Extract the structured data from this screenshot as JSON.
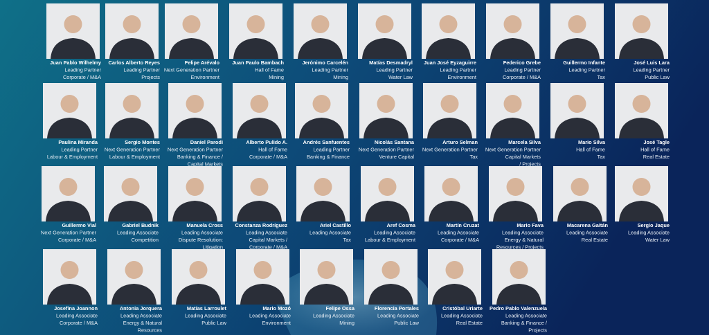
{
  "rows": [
    [
      {
        "name": "Juan Pablo Wilhelmy",
        "role": "Leading Partner",
        "area": [
          "Corporate / M&A"
        ]
      },
      {
        "name": "Carlos Alberto Reyes",
        "role": "Leading Partner",
        "area": [
          "Projects"
        ]
      },
      {
        "name": "Felipe Arévalo",
        "role": "Next Generation Partner",
        "area": [
          "Environment"
        ]
      },
      {
        "name": "Juan Paulo Bambach",
        "role": "Hall of Fame",
        "area": [
          "Mining"
        ]
      },
      {
        "name": "Jerónimo Carcelén",
        "role": "Leading Partner",
        "area": [
          "Mining"
        ]
      },
      {
        "name": "Matías Desmadryl",
        "role": "Leading Partner",
        "area": [
          "Water Law"
        ]
      },
      {
        "name": "Juan José Eyzaguirre",
        "role": "Leading Partner",
        "area": [
          "Environment"
        ]
      },
      {
        "name": "Federico Grebe",
        "role": "Leading Partner",
        "area": [
          "Corporate / M&A"
        ]
      },
      {
        "name": "Guillermo Infante",
        "role": "Leading Partner",
        "area": [
          "Tax"
        ]
      },
      {
        "name": "José Luis Lara",
        "role": "Leading Partner",
        "area": [
          "Public Law"
        ]
      }
    ],
    [
      {
        "name": "Paulina Miranda",
        "role": "Leading Partner",
        "area": [
          "Labour & Employment"
        ]
      },
      {
        "name": "Sergio Montes",
        "role": "Next Generation Partner",
        "area": [
          "Labour & Employment"
        ]
      },
      {
        "name": "Daniel Parodi",
        "role": "Next Generation Partner",
        "area": [
          "Banking & Finance /",
          "Capital Markets"
        ]
      },
      {
        "name": "Alberto Pulido A.",
        "role": "Hall of Fame",
        "area": [
          "Corporate / M&A"
        ]
      },
      {
        "name": "Andrés Sanfuentes",
        "role": "Leading Partner",
        "area": [
          "Banking & Finance"
        ]
      },
      {
        "name": "Nicolás Santana",
        "role": "Next Generation Partner",
        "area": [
          "Venture Capital"
        ]
      },
      {
        "name": "Arturo Selman",
        "role": "Next Generation Partner",
        "area": [
          "Tax"
        ]
      },
      {
        "name": "Marcela Silva",
        "role": "Next Generation Partner",
        "area": [
          "Capital Markets",
          "/ Projects"
        ]
      },
      {
        "name": "Mario Silva",
        "role": "Hall of Fame",
        "area": [
          "Tax"
        ]
      },
      {
        "name": "José Tagle",
        "role": "Hall of Fame",
        "area": [
          "Real Estate"
        ]
      }
    ],
    [
      {
        "name": "Guillermo Vial",
        "role": "Next Generation Partner",
        "area": [
          "Corporate / M&A"
        ]
      },
      {
        "name": "Gabriel Budnik",
        "role": "Leading Associate",
        "area": [
          "Competition"
        ]
      },
      {
        "name": "Manuela Cross",
        "role": "Leading Associate",
        "area": [
          "Dispute Resolution:",
          "Litigation"
        ]
      },
      {
        "name": "Constanza Rodríguez",
        "role": "Leading Associate",
        "area": [
          "Capital Markets /",
          "Corporate / M&A"
        ]
      },
      {
        "name": "Ariel Castillo",
        "role": "Leading Associate",
        "area": [
          "Tax"
        ]
      },
      {
        "name": "Aref Cosma",
        "role": "Leading Associate",
        "area": [
          "Labour & Employment"
        ]
      },
      {
        "name": "Martín Cruzat",
        "role": "Leading Associate",
        "area": [
          "Corporate / M&A"
        ]
      },
      {
        "name": "Mario Fava",
        "role": "Leading Associate",
        "area": [
          "Energy & Natural",
          "Resources / Projects"
        ]
      },
      {
        "name": "Macarena Gaitán",
        "role": "Leading Associate",
        "area": [
          "Real Estate"
        ]
      },
      {
        "name": "Sergio Jaque",
        "role": "Leading Associate",
        "area": [
          "Water Law"
        ]
      }
    ],
    [
      {
        "name": "Josefina Joannon",
        "role": "Leading Associate",
        "area": [
          "Corporate / M&A"
        ]
      },
      {
        "name": "Antonia Jorquera",
        "role": "Leading Associate",
        "area": [
          "Energy & Natural",
          "Resources"
        ]
      },
      {
        "name": "Matías Larroulet",
        "role": "Leading Associate",
        "area": [
          "Public Law"
        ]
      },
      {
        "name": "Mario Mozó",
        "role": "Leading Associate",
        "area": [
          "Environment"
        ]
      },
      {
        "name": "Felipe Ossa",
        "role": "Leading Associate",
        "area": [
          "Mining"
        ]
      },
      {
        "name": "Florencia Portales",
        "role": "Leading Associate",
        "area": [
          "Public Law"
        ]
      },
      {
        "name": "Cristóbal Uriarte",
        "role": "Leading Associate",
        "area": [
          "Real Estate"
        ]
      },
      {
        "name": "Pedro Pablo Valenzuela",
        "role": "Leading Associate",
        "area": [
          "Banking & Finance /",
          "Projects"
        ]
      }
    ]
  ]
}
